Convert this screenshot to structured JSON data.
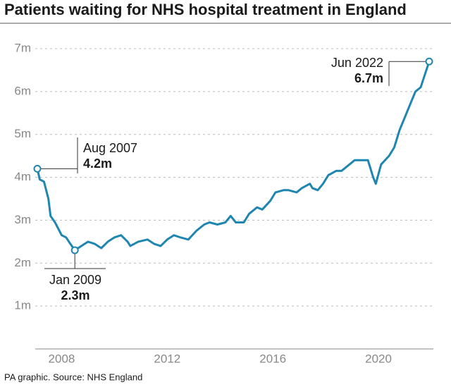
{
  "chart_data": {
    "type": "line",
    "title": "Patients waiting for NHS hospital treatment in England",
    "source": "PA graphic. Source: NHS England",
    "x": [
      2007.58,
      2007.67,
      2007.83,
      2008.0,
      2008.08,
      2008.25,
      2008.5,
      2008.67,
      2008.83,
      2009.0,
      2009.25,
      2009.5,
      2009.75,
      2010.0,
      2010.25,
      2010.5,
      2010.75,
      2011.0,
      2011.1,
      2011.4,
      2011.75,
      2012.0,
      2012.25,
      2012.5,
      2012.75,
      2013.0,
      2013.3,
      2013.6,
      2013.9,
      2014.1,
      2014.4,
      2014.7,
      2014.9,
      2015.1,
      2015.4,
      2015.6,
      2015.9,
      2016.1,
      2016.4,
      2016.6,
      2016.9,
      2017.1,
      2017.4,
      2017.6,
      2017.9,
      2018.0,
      2018.2,
      2018.4,
      2018.6,
      2018.9,
      2019.1,
      2019.4,
      2019.6,
      2019.9,
      2020.1,
      2020.3,
      2020.4,
      2020.6,
      2020.9,
      2021.1,
      2021.3,
      2021.5,
      2021.7,
      2021.9,
      2022.1,
      2022.42
    ],
    "series": [
      {
        "color": "#1f86b0",
        "values": [
          4.2,
          3.95,
          3.9,
          3.5,
          3.1,
          2.95,
          2.65,
          2.6,
          2.45,
          2.3,
          2.4,
          2.5,
          2.45,
          2.35,
          2.5,
          2.6,
          2.65,
          2.5,
          2.4,
          2.5,
          2.55,
          2.45,
          2.4,
          2.55,
          2.65,
          2.6,
          2.55,
          2.75,
          2.9,
          2.95,
          2.9,
          2.95,
          3.1,
          2.95,
          2.95,
          3.15,
          3.3,
          3.25,
          3.45,
          3.65,
          3.7,
          3.7,
          3.65,
          3.75,
          3.85,
          3.75,
          3.7,
          3.85,
          4.05,
          4.15,
          4.15,
          4.3,
          4.4,
          4.4,
          4.4,
          4.0,
          3.85,
          4.3,
          4.5,
          4.7,
          5.1,
          5.4,
          5.7,
          6.0,
          6.1,
          6.7
        ]
      }
    ],
    "xlim": [
      2007.58,
      2022.42
    ],
    "xticks": [
      {
        "value": 2008.5,
        "label": "2008"
      },
      {
        "value": 2012.5,
        "label": "2012"
      },
      {
        "value": 2016.5,
        "label": "2016"
      },
      {
        "value": 2020.5,
        "label": "2020"
      }
    ],
    "ylim": [
      0,
      7
    ],
    "yticks": [
      {
        "value": 1,
        "label": "1m"
      },
      {
        "value": 2,
        "label": "2m"
      },
      {
        "value": 3,
        "label": "3m"
      },
      {
        "value": 4,
        "label": "4m"
      },
      {
        "value": 5,
        "label": "5m"
      },
      {
        "value": 6,
        "label": "6m"
      },
      {
        "value": 7,
        "label": "7m"
      }
    ],
    "grid": true,
    "annotations": [
      {
        "date": "Aug 2007",
        "value": "4.2m"
      },
      {
        "date": "Jan 2009",
        "value": "2.3m"
      },
      {
        "date": "Jun 2022",
        "value": "6.7m"
      }
    ]
  }
}
